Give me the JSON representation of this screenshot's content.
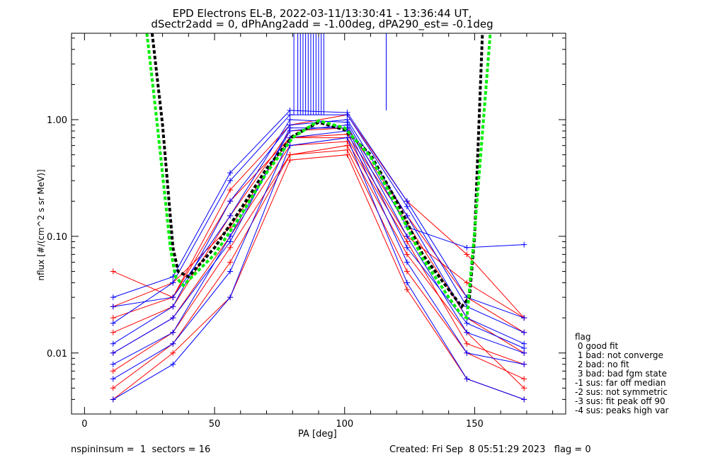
{
  "title_line1": "EPD Electrons EL-B, 2022-03-11/13:30:41 - 13:36:44 UT,",
  "title_line2": "dSectr2add = 0, dPhAng2add = -1.00deg, dPA290_est=  -0.1deg",
  "footer": {
    "left": "nspininsum =  1  sectors = 16",
    "right": "Created: Fri Sep  8 05:51:29 2023   flag = 0"
  },
  "legend": {
    "title": "flag",
    "items": [
      " 0 good fit",
      " 1 bad: not converge",
      " 2 bad: no fit",
      " 3 bad: bad fgm state",
      "-1 sus: far off median",
      "-2 sus: not symmetric",
      "-3 sus: fit peak off 90",
      "-4 sus: peaks high var"
    ]
  },
  "chart_data": {
    "type": "line",
    "xlabel": "PA [deg]",
    "ylabel": "nflux [#/(cm^2 s sr MeV)]",
    "xlim": [
      -5,
      185
    ],
    "ylim": [
      0.003,
      5.5
    ],
    "yscale": "log",
    "xticks": [
      0,
      50,
      100,
      150
    ],
    "xtick_labels": [
      "0",
      "50",
      "100",
      "150"
    ],
    "yticks": [
      0.01,
      0.1,
      1.0
    ],
    "ytick_labels": [
      "0.01",
      "0.10",
      "1.00"
    ],
    "colors": {
      "spectra_a": "#ff0000",
      "spectra_b": "#0000ff",
      "fit_dashed_1": "#000000",
      "fit_dashed_2": "#00ee00"
    },
    "series": [
      {
        "color": "#ff0000",
        "x": [
          11,
          34,
          56,
          79,
          101,
          124,
          147,
          169
        ],
        "y": [
          0.005,
          0.012,
          0.06,
          0.5,
          0.55,
          0.05,
          0.01,
          0.006
        ]
      },
      {
        "color": "#ff0000",
        "x": [
          11,
          34,
          56,
          79,
          101,
          124,
          147,
          169
        ],
        "y": [
          0.01,
          0.02,
          0.1,
          0.6,
          0.65,
          0.09,
          0.012,
          0.008
        ]
      },
      {
        "color": "#ff0000",
        "x": [
          11,
          34,
          56,
          79,
          101,
          124,
          147,
          169
        ],
        "y": [
          0.02,
          0.03,
          0.2,
          0.7,
          0.75,
          0.13,
          0.02,
          0.01
        ]
      },
      {
        "color": "#ff0000",
        "x": [
          11,
          34,
          56,
          79,
          101,
          124,
          147,
          169
        ],
        "y": [
          0.007,
          0.015,
          0.08,
          0.5,
          0.6,
          0.07,
          0.015,
          0.005
        ]
      },
      {
        "color": "#ff0000",
        "x": [
          11,
          34,
          56,
          79,
          101,
          124,
          147,
          169
        ],
        "y": [
          0.015,
          0.025,
          0.15,
          0.8,
          0.85,
          0.15,
          0.03,
          0.015
        ]
      },
      {
        "color": "#ff0000",
        "x": [
          11,
          34,
          56,
          79,
          101,
          124,
          147,
          169
        ],
        "y": [
          0.05,
          0.03,
          0.25,
          0.9,
          1.1,
          0.2,
          0.07,
          0.02
        ]
      },
      {
        "color": "#ff0000",
        "x": [
          11,
          34,
          56,
          79,
          101,
          124,
          147,
          169
        ],
        "y": [
          0.004,
          0.01,
          0.03,
          0.45,
          0.5,
          0.035,
          0.006,
          0.004
        ]
      },
      {
        "color": "#ff0000",
        "x": [
          11,
          34,
          56,
          79,
          101,
          124,
          147,
          169
        ],
        "y": [
          0.025,
          0.04,
          0.12,
          0.7,
          0.7,
          0.1,
          0.04,
          0.02
        ]
      },
      {
        "color": "#0000ff",
        "x": [
          11,
          34,
          56,
          79,
          101,
          124,
          147,
          169
        ],
        "y": [
          0.008,
          0.015,
          0.1,
          0.8,
          0.9,
          0.1,
          0.015,
          0.01
        ]
      },
      {
        "color": "#0000ff",
        "x": [
          11,
          34,
          56,
          79,
          101,
          124,
          147,
          169
        ],
        "y": [
          0.012,
          0.025,
          0.2,
          0.9,
          1.0,
          0.15,
          0.02,
          0.012
        ]
      },
      {
        "color": "#0000ff",
        "x": [
          11,
          34,
          56,
          79,
          101,
          124,
          147,
          169
        ],
        "y": [
          0.018,
          0.04,
          0.3,
          1.1,
          1.1,
          0.18,
          0.025,
          0.015
        ]
      },
      {
        "color": "#0000ff",
        "x": [
          11,
          34,
          56,
          79,
          101,
          124,
          147,
          169
        ],
        "y": [
          0.006,
          0.012,
          0.05,
          0.7,
          0.8,
          0.06,
          0.01,
          0.008
        ]
      },
      {
        "color": "#0000ff",
        "x": [
          11,
          34,
          56,
          79,
          101,
          124,
          147,
          169
        ],
        "y": [
          0.025,
          0.03,
          0.15,
          1.0,
          0.95,
          0.12,
          0.08,
          0.085
        ]
      },
      {
        "color": "#0000ff",
        "x": [
          11,
          34,
          56,
          79,
          101,
          124,
          147,
          169
        ],
        "y": [
          0.01,
          0.02,
          0.09,
          0.85,
          0.85,
          0.08,
          0.018,
          0.011
        ]
      },
      {
        "color": "#0000ff",
        "x": [
          11,
          34,
          56,
          79,
          101,
          124,
          147,
          169
        ],
        "y": [
          0.004,
          0.008,
          0.03,
          0.6,
          0.7,
          0.04,
          0.006,
          0.004
        ]
      },
      {
        "color": "#0000ff",
        "x": [
          11,
          34,
          56,
          79,
          101,
          124,
          147,
          169
        ],
        "y": [
          0.03,
          0.045,
          0.35,
          1.2,
          1.15,
          0.2,
          0.03,
          0.02
        ]
      }
    ],
    "fits": [
      {
        "color": "#000000",
        "x": [
          26,
          30,
          34,
          36,
          40,
          50,
          60,
          70,
          80,
          90,
          100,
          110,
          120,
          130,
          140,
          145,
          148,
          150,
          153
        ],
        "y": [
          5.5,
          0.9,
          0.08,
          0.05,
          0.045,
          0.08,
          0.17,
          0.38,
          0.72,
          0.95,
          0.82,
          0.5,
          0.2,
          0.07,
          0.035,
          0.025,
          0.03,
          0.1,
          5.5
        ]
      },
      {
        "color": "#00ee00",
        "x": [
          24,
          28,
          33,
          35,
          38,
          50,
          60,
          70,
          80,
          90,
          100,
          110,
          120,
          130,
          140,
          145,
          147,
          150,
          156
        ],
        "y": [
          5.5,
          0.9,
          0.08,
          0.045,
          0.038,
          0.07,
          0.15,
          0.35,
          0.7,
          0.98,
          0.85,
          0.48,
          0.18,
          0.065,
          0.03,
          0.021,
          0.02,
          0.11,
          5.5
        ]
      }
    ],
    "spikes": [
      {
        "x": [
          80.5,
          82,
          83,
          84,
          85,
          86,
          87,
          88,
          89,
          90,
          91,
          92
        ],
        "y_from": 1.1,
        "y_to": 5.5,
        "color": "#0000ff"
      },
      {
        "x": [
          116
        ],
        "y_from": 1.2,
        "y_to": 5.5,
        "color": "#0000ff"
      }
    ]
  }
}
